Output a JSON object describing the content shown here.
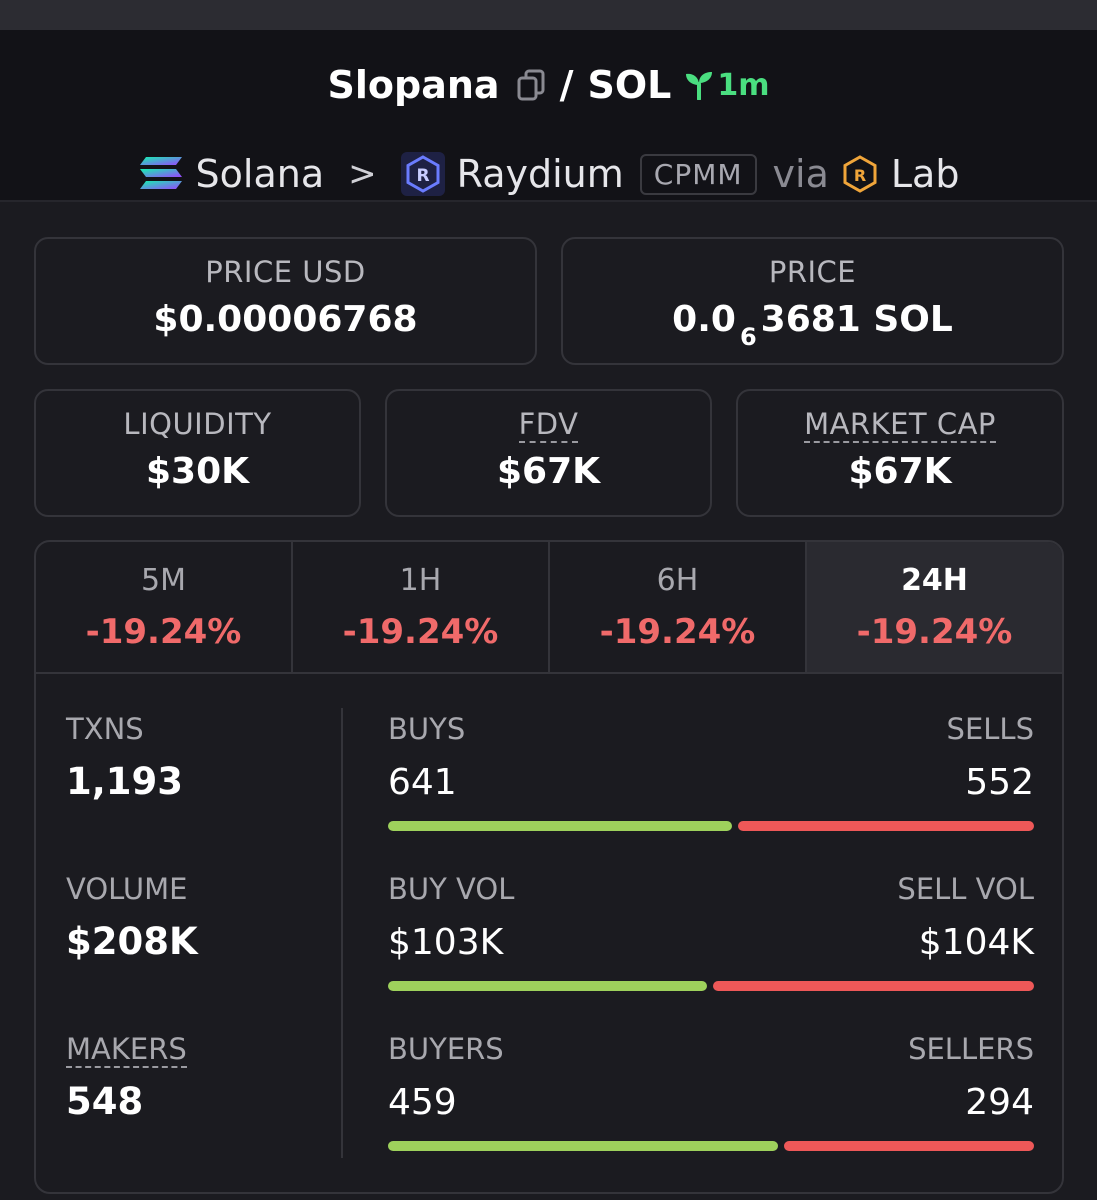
{
  "header": {
    "token_name": "Slopana",
    "separator": "/",
    "quote_symbol": "SOL",
    "age": "1m",
    "chain": "Solana",
    "dex": "Raydium",
    "pool_type": "CPMM",
    "via_label": "via",
    "source": "Lab"
  },
  "cards": {
    "price_usd_label": "PRICE USD",
    "price_usd_value": "$0.00006768",
    "price_label": "PRICE",
    "price_prefix": "0.0",
    "price_subscript": "6",
    "price_suffix": "3681 SOL",
    "liquidity_label": "LIQUIDITY",
    "liquidity_value": "$30K",
    "fdv_label": "FDV",
    "fdv_value": "$67K",
    "mcap_label": "MARKET CAP",
    "mcap_value": "$67K"
  },
  "tabs": [
    {
      "label": "5M",
      "change": "-19.24%"
    },
    {
      "label": "1H",
      "change": "-19.24%"
    },
    {
      "label": "6H",
      "change": "-19.24%"
    },
    {
      "label": "24H",
      "change": "-19.24%",
      "active": true
    }
  ],
  "stats": {
    "txns_label": "TXNS",
    "txns_value": "1,193",
    "volume_label": "VOLUME",
    "volume_value": "$208K",
    "makers_label": "MAKERS",
    "makers_value": "548"
  },
  "pairs": [
    {
      "left_label": "BUYS",
      "left_value": "641",
      "right_label": "SELLS",
      "right_value": "552",
      "buy_fraction": 0.537
    },
    {
      "left_label": "BUY VOL",
      "left_value": "$103K",
      "right_label": "SELL VOL",
      "right_value": "$104K",
      "buy_fraction": 0.498
    },
    {
      "left_label": "BUYERS",
      "left_value": "459",
      "right_label": "SELLERS",
      "right_value": "294",
      "buy_fraction": 0.61
    }
  ],
  "colors": {
    "buy": "#9ed15c",
    "sell": "#ee5858",
    "age": "#4ade80",
    "negative": "#f06a6a"
  }
}
